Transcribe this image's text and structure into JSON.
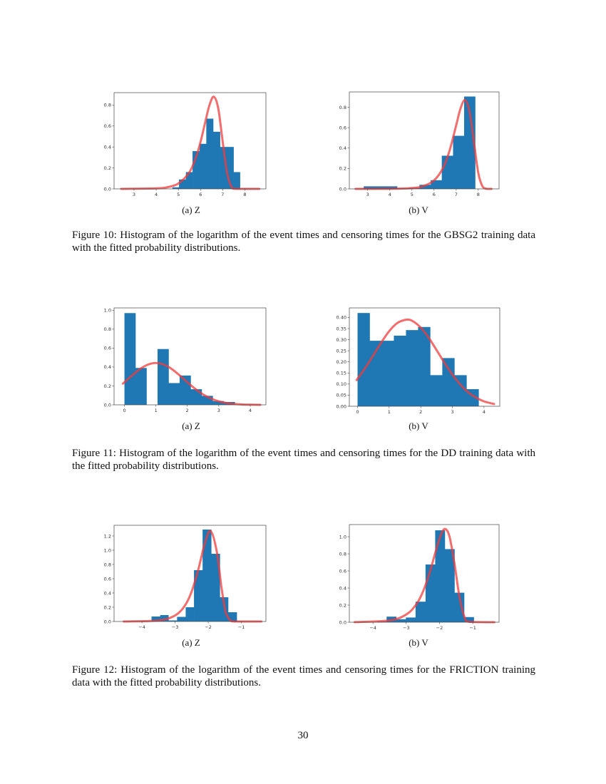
{
  "colors": {
    "bar": "#1f77b4",
    "curve": "#f03c3c"
  },
  "figures": [
    {
      "subcaptions": [
        "(a) Z",
        "(b) V"
      ],
      "caption": "Figure 10: Histogram of the logarithm of the event times and censoring times for the GBSG2 training data with the fitted probability distributions."
    },
    {
      "subcaptions": [
        "(a) Z",
        "(b) V"
      ],
      "caption": "Figure 11: Histogram of the logarithm of the event times and censoring times for the DD training data with the fitted probability distributions."
    },
    {
      "subcaptions": [
        "(a) Z",
        "(b) V"
      ],
      "caption": "Figure 12: Histogram of the logarithm of the event times and censoring times for the FRICTION training data with the fitted probability distributions."
    }
  ],
  "page_number": "30",
  "chart_data": [
    {
      "type": "bar",
      "subplot": "(a) Z",
      "figure": "Figure 10",
      "xlim": [
        2.1,
        8.95
      ],
      "ylim": [
        0,
        0.918
      ],
      "xticks": [
        "3",
        "4",
        "5",
        "6",
        "7",
        "8"
      ],
      "xtick_values": [
        3,
        4,
        5,
        6,
        7,
        8
      ],
      "yticks": [
        "0.0",
        "0.2",
        "0.4",
        "0.6",
        "0.8"
      ],
      "ytick_values": [
        0,
        0.2,
        0.4,
        0.6,
        0.8
      ],
      "bin_edges": [
        4.73,
        5.03,
        5.34,
        5.64,
        5.96,
        6.26,
        6.57,
        6.88,
        7.19,
        7.49,
        7.78
      ],
      "values": [
        0.015,
        0.09,
        0.16,
        0.36,
        0.43,
        0.67,
        0.545,
        0.4,
        0.4,
        0.16
      ],
      "fitted_curve": {
        "x": [
          2.42,
          4.0,
          4.5,
          5.0,
          5.5,
          5.8,
          6.0,
          6.2,
          6.4,
          6.6,
          6.8,
          7.0,
          7.2,
          7.4,
          7.6,
          8.65
        ],
        "y": [
          0,
          0.005,
          0.016,
          0.051,
          0.16,
          0.305,
          0.448,
          0.625,
          0.797,
          0.879,
          0.767,
          0.45,
          0.151,
          0.018,
          0,
          0
        ]
      }
    },
    {
      "type": "bar",
      "subplot": "(b) V",
      "figure": "Figure 10",
      "xlim": [
        2.17,
        8.94
      ],
      "ylim": [
        0,
        0.95
      ],
      "xticks": [
        "3",
        "4",
        "5",
        "6",
        "7",
        "8"
      ],
      "xtick_values": [
        3,
        4,
        5,
        6,
        7,
        8
      ],
      "yticks": [
        "0.0",
        "0.2",
        "0.4",
        "0.6",
        "0.8"
      ],
      "ytick_values": [
        0,
        0.2,
        0.4,
        0.6,
        0.8
      ],
      "bin_edges": [
        2.82,
        3.32,
        3.83,
        4.33,
        4.84,
        5.34,
        5.85,
        6.35,
        6.86,
        7.36,
        7.86
      ],
      "values": [
        0.025,
        0.025,
        0.025,
        0.005,
        0.01,
        0.04,
        0.085,
        0.325,
        0.52,
        0.905
      ],
      "fitted_curve": {
        "x": [
          2.45,
          4.0,
          5.0,
          5.5,
          6.0,
          6.4,
          6.7,
          7.0,
          7.2,
          7.4,
          7.6,
          7.8,
          8.0,
          8.2,
          8.4,
          8.6
        ],
        "y": [
          0,
          0.001,
          0.008,
          0.026,
          0.083,
          0.202,
          0.373,
          0.622,
          0.79,
          0.87,
          0.763,
          0.464,
          0.157,
          0.021,
          0,
          0
        ]
      }
    },
    {
      "type": "bar",
      "subplot": "(a) Z",
      "figure": "Figure 11",
      "xlim": [
        -0.33,
        4.5
      ],
      "ylim": [
        0,
        1.025
      ],
      "xticks": [
        "0",
        "1",
        "2",
        "3",
        "4"
      ],
      "xtick_values": [
        0,
        1,
        2,
        3,
        4
      ],
      "yticks": [
        "0.0",
        "0.2",
        "0.4",
        "0.6",
        "0.8",
        "1.0"
      ],
      "ytick_values": [
        0,
        0.2,
        0.4,
        0.6,
        0.8,
        1.0
      ],
      "bin_edges": [
        0,
        0.351,
        0.702,
        1.053,
        1.404,
        1.755,
        2.106,
        2.457,
        2.808,
        3.159,
        3.51
      ],
      "values": [
        0.97,
        0.39,
        0,
        0.59,
        0.23,
        0.31,
        0.165,
        0.095,
        0.04,
        0.03
      ],
      "fitted_curve": {
        "x": [
          -0.05,
          0.25,
          0.5,
          0.75,
          1.0,
          1.25,
          1.5,
          1.75,
          2.0,
          2.25,
          2.5,
          2.75,
          3.0,
          3.25,
          3.5,
          3.75,
          4.0,
          4.32
        ],
        "y": [
          0.224,
          0.313,
          0.38,
          0.426,
          0.443,
          0.426,
          0.38,
          0.313,
          0.239,
          0.169,
          0.11,
          0.067,
          0.0375,
          0.0195,
          0.0094,
          0.0042,
          0.0017,
          0.0004
        ]
      }
    },
    {
      "type": "bar",
      "subplot": "(b) V",
      "figure": "Figure 11",
      "xlim": [
        -0.26,
        4.5
      ],
      "ylim": [
        0,
        0.443
      ],
      "xticks": [
        "0",
        "1",
        "2",
        "3",
        "4"
      ],
      "xtick_values": [
        0,
        1,
        2,
        3,
        4
      ],
      "yticks": [
        "0.00",
        "0.05",
        "0.10",
        "0.15",
        "0.20",
        "0.25",
        "0.30",
        "0.35",
        "0.40"
      ],
      "ytick_values": [
        0,
        0.05,
        0.1,
        0.15,
        0.2,
        0.25,
        0.3,
        0.35,
        0.4
      ],
      "bin_edges": [
        0,
        0.383,
        0.766,
        1.149,
        1.532,
        1.915,
        2.298,
        2.681,
        3.064,
        3.447,
        3.83
      ],
      "values": [
        0.42,
        0.295,
        0.295,
        0.318,
        0.343,
        0.357,
        0.14,
        0.217,
        0.14,
        0.077
      ],
      "fitted_curve": {
        "x": [
          -0.03,
          0.25,
          0.5,
          0.75,
          1.0,
          1.25,
          1.55,
          1.75,
          2.0,
          2.25,
          2.5,
          2.75,
          3.0,
          3.25,
          3.5,
          3.75,
          4.0,
          4.32
        ],
        "y": [
          0.118,
          0.174,
          0.23,
          0.287,
          0.338,
          0.374,
          0.39,
          0.383,
          0.354,
          0.309,
          0.253,
          0.196,
          0.143,
          0.098,
          0.063,
          0.039,
          0.022,
          0.01
        ]
      }
    },
    {
      "type": "bar",
      "subplot": "(a) Z",
      "figure": "Figure 12",
      "xlim": [
        -4.84,
        -0.26
      ],
      "ylim": [
        0,
        1.35
      ],
      "xticks": [
        "−4",
        "−3",
        "−2",
        "−1"
      ],
      "xtick_values": [
        -4,
        -3,
        -2,
        -1
      ],
      "yticks": [
        "0.0",
        "0.2",
        "0.4",
        "0.6",
        "0.8",
        "1.0",
        "1.2"
      ],
      "ytick_values": [
        0,
        0.2,
        0.4,
        0.6,
        0.8,
        1.0,
        1.2
      ],
      "bin_edges": [
        -3.71,
        -3.45,
        -3.2,
        -2.94,
        -2.68,
        -2.43,
        -2.17,
        -1.91,
        -1.65,
        -1.4,
        -1.14
      ],
      "values": [
        0.07,
        0.09,
        0.015,
        0.065,
        0.2,
        0.72,
        1.29,
        0.95,
        0.34,
        0.13
      ],
      "fitted_curve": {
        "x": [
          -4.55,
          -3.5,
          -3.0,
          -2.7,
          -2.5,
          -2.3,
          -2.1,
          -1.93,
          -1.75,
          -1.6,
          -1.5,
          -1.45,
          -1.3,
          -1.1,
          -0.4
        ],
        "y": [
          0,
          0.015,
          0.084,
          0.226,
          0.42,
          0.728,
          1.101,
          1.27,
          0.999,
          0.475,
          0.186,
          0.096,
          0.005,
          0,
          0
        ]
      }
    },
    {
      "type": "bar",
      "subplot": "(b) V",
      "figure": "Figure 12",
      "xlim": [
        -4.71,
        -0.21
      ],
      "ylim": [
        0,
        1.142
      ],
      "xticks": [
        "−4",
        "−3",
        "−2",
        "−1"
      ],
      "xtick_values": [
        -4,
        -3,
        -2,
        -1
      ],
      "yticks": [
        "0.0",
        "0.2",
        "0.4",
        "0.6",
        "0.8",
        "1.0"
      ],
      "ytick_values": [
        0,
        0.2,
        0.4,
        0.6,
        0.8,
        1.0
      ],
      "bin_edges": [
        -3.87,
        -3.59,
        -3.3,
        -3.01,
        -2.72,
        -2.42,
        -2.13,
        -1.84,
        -1.55,
        -1.26,
        -0.97
      ],
      "values": [
        0.01,
        0.065,
        0.035,
        0.055,
        0.24,
        0.675,
        1.075,
        0.855,
        0.345,
        0.06
      ],
      "fitted_curve": {
        "x": [
          -4.55,
          -3.5,
          -3.0,
          -2.7,
          -2.5,
          -2.3,
          -2.1,
          -1.95,
          -1.83,
          -1.7,
          -1.55,
          -1.4,
          -1.25,
          -1.1,
          -0.35
        ],
        "y": [
          0.001,
          0.021,
          0.09,
          0.208,
          0.355,
          0.574,
          0.849,
          1.03,
          1.09,
          1.002,
          0.686,
          0.297,
          0.062,
          0.004,
          0
        ]
      }
    }
  ]
}
